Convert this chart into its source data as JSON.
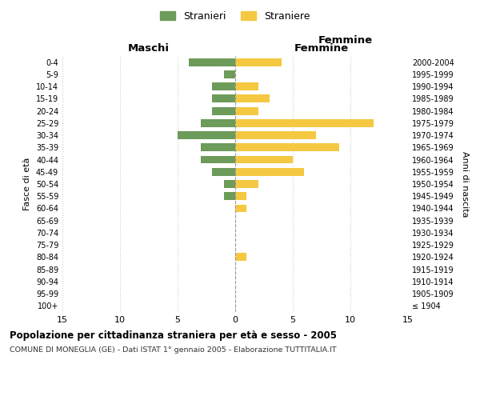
{
  "age_groups": [
    "100+",
    "95-99",
    "90-94",
    "85-89",
    "80-84",
    "75-79",
    "70-74",
    "65-69",
    "60-64",
    "55-59",
    "50-54",
    "45-49",
    "40-44",
    "35-39",
    "30-34",
    "25-29",
    "20-24",
    "15-19",
    "10-14",
    "5-9",
    "0-4"
  ],
  "birth_years": [
    "≤ 1904",
    "1905-1909",
    "1910-1914",
    "1915-1919",
    "1920-1924",
    "1925-1929",
    "1930-1934",
    "1935-1939",
    "1940-1944",
    "1945-1949",
    "1950-1954",
    "1955-1959",
    "1960-1964",
    "1965-1969",
    "1970-1974",
    "1975-1979",
    "1980-1984",
    "1985-1989",
    "1990-1994",
    "1995-1999",
    "2000-2004"
  ],
  "maschi": [
    0,
    0,
    0,
    0,
    0,
    0,
    0,
    0,
    0,
    1,
    1,
    2,
    3,
    3,
    5,
    3,
    2,
    2,
    2,
    1,
    4
  ],
  "femmine": [
    0,
    0,
    0,
    0,
    1,
    0,
    0,
    0,
    1,
    1,
    2,
    6,
    5,
    9,
    7,
    12,
    2,
    3,
    2,
    0,
    4
  ],
  "maschi_color": "#6d9b5a",
  "femmine_color": "#f5c842",
  "title": "Popolazione per cittadinanza straniera per età e sesso - 2005",
  "subtitle": "COMUNE DI MONEGLIA (GE) - Dati ISTAT 1° gennaio 2005 - Elaborazione TUTTITALIA.IT",
  "xlabel_left": "Maschi",
  "xlabel_right": "Femmine",
  "ylabel_left": "Fasce di età",
  "ylabel_right": "Anni di nascita",
  "legend_maschi": "Stranieri",
  "legend_femmine": "Straniere",
  "xlim": 15,
  "background_color": "#ffffff",
  "grid_color": "#cccccc"
}
